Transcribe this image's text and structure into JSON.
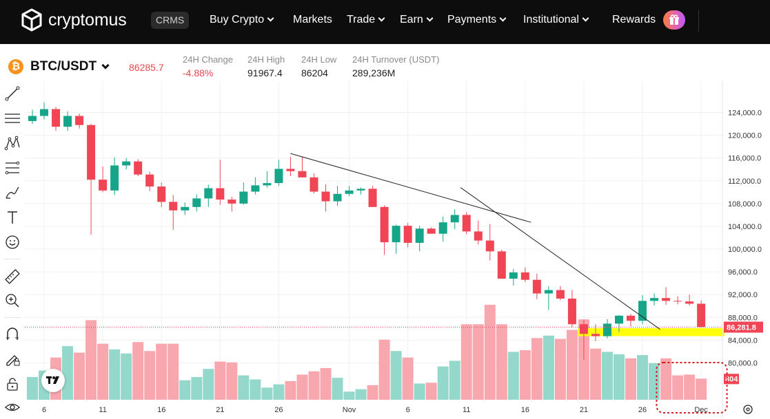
{
  "brand": {
    "name": "cryptomus",
    "badge": "CRMS"
  },
  "nav": [
    {
      "label": "Buy Crypto",
      "dropdown": true
    },
    {
      "label": "Markets",
      "dropdown": false
    },
    {
      "label": "Trade",
      "dropdown": true
    },
    {
      "label": "Earn",
      "dropdown": true
    },
    {
      "label": "Payments",
      "dropdown": true
    },
    {
      "label": "Institutional",
      "dropdown": true
    },
    {
      "label": "Rewards",
      "dropdown": false
    }
  ],
  "ticker": {
    "pair": "BTC/USDT",
    "last_price": "86285.7",
    "change_label": "24H Change",
    "change_value": "-4.88%",
    "high_label": "24H High",
    "high_value": "91967.4",
    "low_label": "24H Low",
    "low_value": "86204",
    "turnover_label": "24H Turnover (USDT)",
    "turnover_value": "289,236M"
  },
  "tools": [
    "trend-line-icon",
    "horizontal-lines-icon",
    "pattern-icon",
    "fib-icon",
    "brush-icon",
    "text-icon",
    "emoji-icon",
    "ruler-icon",
    "zoom-in-icon",
    "magnet-icon",
    "pencil-lock-icon",
    "lock-icon",
    "eye-icon"
  ],
  "colors": {
    "up": "#17a58a",
    "down": "#ef4554",
    "up_vol": "#93d8ca",
    "down_vol": "#f8a7ae",
    "highlight": "#ffff00",
    "annotation": "#d81b1b"
  },
  "chart_data": {
    "type": "candlestick",
    "y_axis": {
      "min": 78000,
      "max": 126000,
      "ticks": [
        80000,
        84000,
        88000,
        92000,
        96000,
        100000,
        104000,
        108000,
        112000,
        116000,
        120000,
        124000
      ]
    },
    "x_tick_labels": [
      {
        "index": 1,
        "label": "6"
      },
      {
        "index": 6,
        "label": "11"
      },
      {
        "index": 11,
        "label": "16"
      },
      {
        "index": 16,
        "label": "21"
      },
      {
        "index": 21,
        "label": "26"
      },
      {
        "index": 27,
        "label": "Nov"
      },
      {
        "index": 32,
        "label": "6"
      },
      {
        "index": 37,
        "label": "11"
      },
      {
        "index": 42,
        "label": "16"
      },
      {
        "index": 47,
        "label": "21"
      },
      {
        "index": 52,
        "label": "26"
      },
      {
        "index": 57,
        "label": "Dec"
      }
    ],
    "current_price_label": "86,281.8",
    "current_price": 86281.8,
    "volume_label": "804",
    "candles": [
      {
        "o": 122500,
        "h": 124500,
        "l": 122000,
        "c": 123400,
        "v": 0.28
      },
      {
        "o": 123400,
        "h": 125800,
        "l": 122800,
        "c": 124600,
        "v": 0.36
      },
      {
        "o": 124600,
        "h": 125000,
        "l": 120800,
        "c": 121500,
        "v": 0.52
      },
      {
        "o": 121500,
        "h": 124200,
        "l": 120800,
        "c": 123400,
        "v": 0.66
      },
      {
        "o": 123400,
        "h": 123800,
        "l": 121200,
        "c": 121800,
        "v": 0.58
      },
      {
        "o": 121800,
        "h": 122000,
        "l": 102500,
        "c": 112200,
        "v": 0.98
      },
      {
        "o": 112200,
        "h": 114500,
        "l": 110000,
        "c": 110300,
        "v": 0.69
      },
      {
        "o": 110300,
        "h": 116100,
        "l": 109500,
        "c": 114700,
        "v": 0.62
      },
      {
        "o": 114700,
        "h": 116000,
        "l": 114000,
        "c": 115400,
        "v": 0.57
      },
      {
        "o": 115400,
        "h": 115800,
        "l": 112800,
        "c": 113100,
        "v": 0.71
      },
      {
        "o": 113100,
        "h": 113600,
        "l": 110200,
        "c": 111000,
        "v": 0.6
      },
      {
        "o": 111000,
        "h": 111700,
        "l": 107400,
        "c": 108300,
        "v": 0.69
      },
      {
        "o": 108300,
        "h": 109500,
        "l": 103400,
        "c": 106800,
        "v": 0.69
      },
      {
        "o": 106800,
        "h": 108200,
        "l": 106000,
        "c": 107400,
        "v": 0.24
      },
      {
        "o": 107400,
        "h": 109600,
        "l": 106600,
        "c": 108900,
        "v": 0.28
      },
      {
        "o": 108900,
        "h": 111300,
        "l": 107400,
        "c": 110700,
        "v": 0.38
      },
      {
        "o": 110700,
        "h": 115700,
        "l": 107800,
        "c": 108700,
        "v": 0.47
      },
      {
        "o": 108700,
        "h": 109200,
        "l": 106600,
        "c": 108000,
        "v": 0.46
      },
      {
        "o": 108000,
        "h": 111700,
        "l": 107800,
        "c": 110100,
        "v": 0.3
      },
      {
        "o": 110100,
        "h": 112600,
        "l": 109600,
        "c": 111200,
        "v": 0.25
      },
      {
        "o": 111200,
        "h": 113700,
        "l": 110800,
        "c": 111600,
        "v": 0.15
      },
      {
        "o": 111600,
        "h": 115700,
        "l": 111100,
        "c": 114100,
        "v": 0.19
      },
      {
        "o": 114100,
        "h": 116200,
        "l": 112800,
        "c": 113700,
        "v": 0.23
      },
      {
        "o": 113700,
        "h": 116300,
        "l": 112600,
        "c": 112600,
        "v": 0.31
      },
      {
        "o": 112600,
        "h": 113300,
        "l": 109800,
        "c": 110100,
        "v": 0.35
      },
      {
        "o": 110100,
        "h": 111400,
        "l": 106600,
        "c": 108400,
        "v": 0.39
      },
      {
        "o": 108400,
        "h": 111100,
        "l": 107600,
        "c": 109700,
        "v": 0.27
      },
      {
        "o": 109700,
        "h": 111100,
        "l": 109300,
        "c": 110300,
        "v": 0.1
      },
      {
        "o": 110300,
        "h": 110800,
        "l": 109600,
        "c": 110600,
        "v": 0.13
      },
      {
        "o": 110600,
        "h": 111100,
        "l": 107400,
        "c": 107400,
        "v": 0.18
      },
      {
        "o": 107400,
        "h": 107700,
        "l": 99000,
        "c": 101200,
        "v": 0.74
      },
      {
        "o": 101200,
        "h": 104300,
        "l": 99200,
        "c": 104100,
        "v": 0.6
      },
      {
        "o": 104100,
        "h": 104600,
        "l": 100300,
        "c": 101100,
        "v": 0.52
      },
      {
        "o": 101100,
        "h": 104100,
        "l": 99600,
        "c": 103600,
        "v": 0.2
      },
      {
        "o": 103600,
        "h": 103800,
        "l": 102700,
        "c": 102700,
        "v": 0.21
      },
      {
        "o": 102700,
        "h": 105700,
        "l": 101300,
        "c": 104700,
        "v": 0.41
      },
      {
        "o": 104700,
        "h": 107000,
        "l": 103500,
        "c": 106000,
        "v": 0.48
      },
      {
        "o": 106000,
        "h": 106500,
        "l": 102600,
        "c": 103100,
        "v": 0.93
      },
      {
        "o": 103100,
        "h": 105000,
        "l": 100800,
        "c": 101500,
        "v": 0.93
      },
      {
        "o": 101500,
        "h": 104400,
        "l": 98000,
        "c": 99600,
        "v": 1.17
      },
      {
        "o": 99600,
        "h": 99900,
        "l": 94800,
        "c": 94800,
        "v": 0.93
      },
      {
        "o": 94800,
        "h": 96500,
        "l": 93600,
        "c": 95900,
        "v": 0.59
      },
      {
        "o": 95900,
        "h": 96800,
        "l": 94200,
        "c": 94600,
        "v": 0.61
      },
      {
        "o": 94600,
        "h": 95700,
        "l": 91200,
        "c": 92200,
        "v": 0.76
      },
      {
        "o": 92200,
        "h": 93500,
        "l": 89300,
        "c": 92800,
        "v": 0.79
      },
      {
        "o": 92800,
        "h": 93500,
        "l": 91000,
        "c": 91300,
        "v": 0.75
      },
      {
        "o": 91300,
        "h": 92800,
        "l": 86300,
        "c": 86800,
        "v": 0.86
      },
      {
        "o": 86800,
        "h": 87600,
        "l": 80600,
        "c": 85100,
        "v": 0.99
      },
      {
        "o": 85100,
        "h": 86800,
        "l": 83800,
        "c": 84700,
        "v": 0.63
      },
      {
        "o": 84700,
        "h": 87700,
        "l": 84300,
        "c": 86900,
        "v": 0.59
      },
      {
        "o": 86900,
        "h": 88400,
        "l": 85400,
        "c": 88300,
        "v": 0.56
      },
      {
        "o": 88300,
        "h": 88600,
        "l": 86400,
        "c": 87400,
        "v": 0.51
      },
      {
        "o": 87400,
        "h": 91900,
        "l": 86800,
        "c": 90900,
        "v": 0.55
      },
      {
        "o": 90900,
        "h": 92200,
        "l": 90100,
        "c": 91400,
        "v": 0.45
      },
      {
        "o": 91400,
        "h": 93300,
        "l": 90200,
        "c": 90900,
        "v": 0.51
      },
      {
        "o": 90900,
        "h": 91700,
        "l": 90300,
        "c": 90800,
        "v": 0.3
      },
      {
        "o": 90800,
        "h": 92000,
        "l": 90100,
        "c": 90400,
        "v": 0.31
      },
      {
        "o": 90400,
        "h": 91000,
        "l": 86200,
        "c": 86300,
        "v": 0.26
      }
    ],
    "trendlines": [
      {
        "from": {
          "index": 22,
          "price": 116800
        },
        "to": {
          "index": 42.5,
          "price": 104700
        }
      },
      {
        "from": {
          "index": 36.5,
          "price": 110800
        },
        "to": {
          "index": 53.5,
          "price": 85900
        }
      }
    ],
    "highlight_zone": {
      "from_index": 46.5,
      "to_index": 59,
      "price_top": 86100,
      "price_bottom": 84700
    }
  }
}
